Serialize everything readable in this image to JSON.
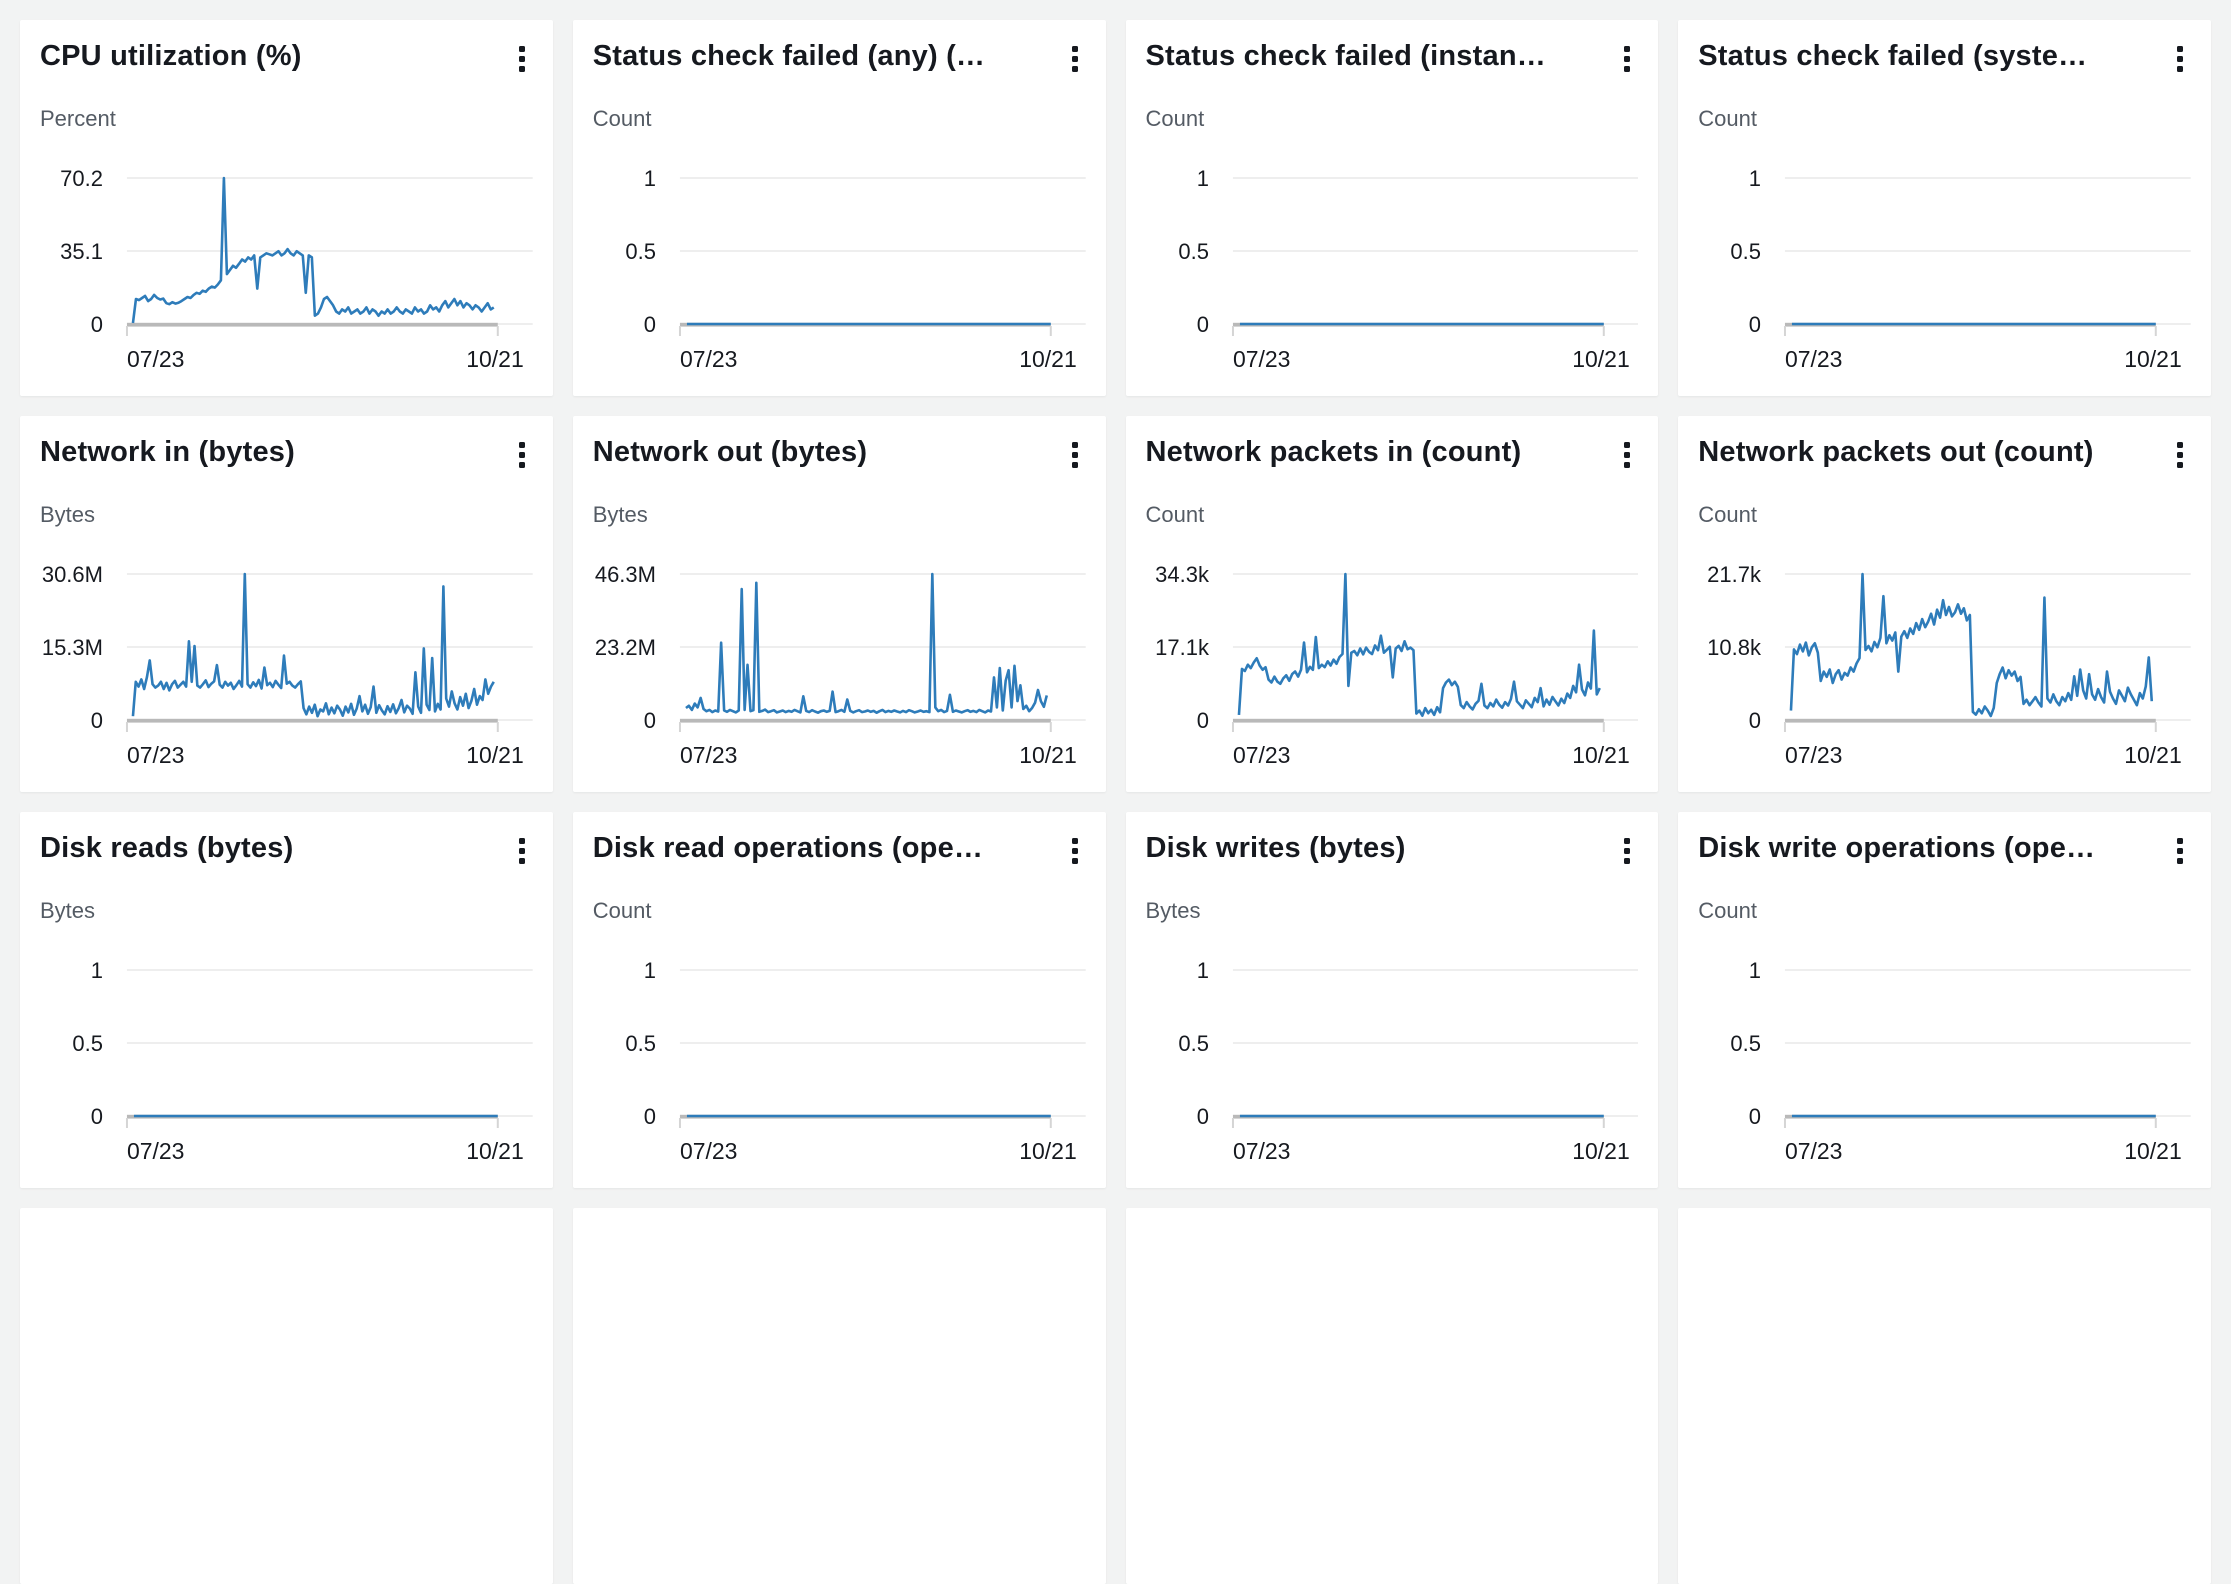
{
  "page": {
    "background": "#f2f3f3"
  },
  "colors": {
    "line": "#2e7cba",
    "grid": "#e9e9e9",
    "baseline": "#b9b9b9",
    "axis_tick_mark": "#d5d5d5",
    "title": "#16191f",
    "unit": "#545b64",
    "tick_label": "#16191f",
    "card_bg": "#ffffff"
  },
  "menu_icon": "kebab-vertical-dots",
  "partial_row": {
    "count": 4
  },
  "cards": [
    {
      "title": "CPU utilization (%)",
      "unit": "Percent",
      "y_ticks": [
        "70.2",
        "35.1",
        "0"
      ],
      "y_max": 70.2,
      "x_start": "07/23",
      "x_end": "10/21",
      "type": "line",
      "values": [
        0.5,
        12,
        11.5,
        12.5,
        13.5,
        11,
        12,
        14,
        12.5,
        11.8,
        12.2,
        10,
        9.5,
        10.5,
        9.8,
        10.2,
        11,
        12,
        13,
        12.5,
        14,
        15,
        14.5,
        16,
        15.5,
        17,
        18,
        17.5,
        19,
        21,
        70.2,
        24,
        26,
        28,
        27,
        29,
        31,
        30,
        32,
        31,
        33,
        17,
        32,
        33,
        34,
        33.5,
        33,
        34,
        35,
        33,
        34,
        36,
        34,
        33,
        35,
        34,
        33,
        15,
        33,
        32,
        4,
        5,
        8,
        12,
        13,
        11,
        9,
        6,
        5,
        7,
        6,
        8,
        5,
        6,
        7,
        5,
        6,
        8,
        5,
        7,
        6,
        4,
        6,
        5,
        7,
        5,
        6,
        8,
        6,
        5,
        7,
        6,
        5,
        8,
        6,
        7,
        5,
        6,
        9,
        7,
        8,
        6,
        9,
        11,
        8,
        10,
        12,
        9,
        11,
        8,
        10,
        9,
        7,
        9,
        8,
        6,
        8,
        10,
        7,
        8
      ]
    },
    {
      "title": "Status check failed (any) (…",
      "unit": "Count",
      "y_ticks": [
        "1",
        "0.5",
        "0"
      ],
      "y_max": 1,
      "x_start": "07/23",
      "x_end": "10/21",
      "type": "line",
      "values": [
        0,
        0
      ]
    },
    {
      "title": "Status check failed (instan…",
      "unit": "Count",
      "y_ticks": [
        "1",
        "0.5",
        "0"
      ],
      "y_max": 1,
      "x_start": "07/23",
      "x_end": "10/21",
      "type": "line",
      "values": [
        0,
        0
      ]
    },
    {
      "title": "Status check failed (syste…",
      "unit": "Count",
      "y_ticks": [
        "1",
        "0.5",
        "0"
      ],
      "y_max": 1,
      "x_start": "07/23",
      "x_end": "10/21",
      "type": "line",
      "values": [
        0,
        0
      ]
    },
    {
      "title": "Network in (bytes)",
      "unit": "Bytes",
      "y_ticks": [
        "30.6M",
        "15.3M",
        "0"
      ],
      "y_max": 30.6,
      "x_start": "07/23",
      "x_end": "10/21",
      "type": "line",
      "values": [
        0.8,
        8,
        7,
        8.5,
        6.5,
        9,
        12.5,
        7.5,
        6.8,
        7.2,
        8,
        6.5,
        7.8,
        6.2,
        7.5,
        8.2,
        6.8,
        7.4,
        8,
        7,
        16.5,
        8,
        15.5,
        7.2,
        6.8,
        7.5,
        8.3,
        6.9,
        7.6,
        8.1,
        11.5,
        7.4,
        6.8,
        8,
        7.2,
        7.8,
        6.5,
        7.3,
        8.2,
        7,
        30.6,
        7.5,
        6.8,
        7.9,
        7.1,
        8.4,
        6.6,
        11,
        7.3,
        7.8,
        6.9,
        8.2,
        7.4,
        6.7,
        13.5,
        7.6,
        8,
        7.2,
        6.8,
        7.5,
        8.1,
        2.5,
        1.2,
        2.8,
        1.5,
        3.2,
        0.8,
        2.2,
        1.8,
        3.5,
        1.2,
        2.6,
        1.4,
        3,
        2.2,
        0.9,
        2.8,
        1.6,
        3.4,
        1.1,
        2.4,
        5,
        1.8,
        3.2,
        1.3,
        2.7,
        7,
        1.5,
        3.1,
        2,
        1.2,
        2.9,
        1.7,
        3.3,
        1.4,
        2.5,
        4.2,
        1.6,
        3,
        2.4,
        1.3,
        10,
        2.8,
        1.5,
        15,
        3.2,
        2.1,
        13,
        1.8,
        3.4,
        2.2,
        28,
        4.5,
        2.8,
        6,
        3.5,
        2.2,
        4.8,
        3,
        5.5,
        2.5,
        4,
        6.5,
        3.2,
        5,
        4.2,
        8.5,
        5.5,
        7,
        8
      ]
    },
    {
      "title": "Network out (bytes)",
      "unit": "Bytes",
      "y_ticks": [
        "46.3M",
        "23.2M",
        "0"
      ],
      "y_max": 46.3,
      "x_start": "07/23",
      "x_end": "10/21",
      "type": "line",
      "values": [
        3.8,
        4.5,
        3.2,
        5.2,
        4,
        7,
        3.5,
        2.8,
        3.2,
        2.5,
        3,
        2.7,
        24.5,
        3,
        2.6,
        3.2,
        2.8,
        2.4,
        3,
        41.5,
        3.2,
        17.5,
        2.8,
        3.1,
        43.5,
        2.6,
        2.9,
        3.3,
        2.5,
        2.8,
        3.1,
        2.4,
        2.7,
        3,
        2.5,
        2.9,
        2.6,
        3.2,
        2.8,
        2.4,
        7.5,
        2.9,
        2.5,
        3.1,
        2.7,
        2.3,
        2.8,
        3,
        2.6,
        2.9,
        9,
        2.5,
        2.8,
        3.2,
        2.6,
        6.5,
        2.9,
        2.4,
        2.8,
        3.1,
        2.5,
        2.7,
        3,
        2.6,
        2.9,
        2.3,
        2.8,
        3.2,
        2.5,
        2.9,
        2.6,
        3,
        2.7,
        2.4,
        2.9,
        2.5,
        3.1,
        2.8,
        2.4,
        2.7,
        3,
        2.6,
        2.8,
        2.5,
        46.3,
        4,
        2.8,
        3.2,
        2.5,
        2.9,
        8,
        2.6,
        3,
        2.7,
        2.4,
        2.8,
        3.1,
        2.6,
        2.9,
        2.5,
        3.2,
        2.8,
        2.4,
        3,
        2.7,
        13.5,
        4,
        16.5,
        3,
        12.5,
        15.8,
        4,
        17.2,
        6,
        11,
        3.5,
        4.5,
        2.8,
        3.8,
        5.5,
        9.5,
        6,
        4.2,
        7.8
      ]
    },
    {
      "title": "Network packets in (count)",
      "unit": "Count",
      "y_ticks": [
        "34.3k",
        "17.1k",
        "0"
      ],
      "y_max": 34.3,
      "x_start": "07/23",
      "x_end": "10/21",
      "type": "line",
      "values": [
        1.2,
        12,
        11.5,
        13,
        12.2,
        13.5,
        14.5,
        12.8,
        11.8,
        12.4,
        9.5,
        8.8,
        10.2,
        9,
        8.5,
        9.8,
        10.5,
        9.2,
        10.8,
        11.4,
        10.2,
        11.8,
        18.2,
        11.2,
        12.5,
        11.8,
        19.5,
        12.2,
        13,
        12.4,
        13.8,
        12.8,
        14.2,
        13.2,
        14.8,
        15.5,
        34.3,
        8,
        15.8,
        16.2,
        15.2,
        16.8,
        15.4,
        17,
        16,
        15.5,
        17.5,
        16.4,
        19.8,
        15.8,
        16.5,
        17.2,
        10,
        16.8,
        17.4,
        16.2,
        18.5,
        16.6,
        17,
        16.4,
        1.5,
        2.2,
        1,
        2.8,
        1.6,
        2.4,
        1.2,
        3,
        1.8,
        7.5,
        8.8,
        9.5,
        8.2,
        9,
        7.8,
        3.5,
        2.8,
        4.2,
        3.2,
        2.5,
        3.8,
        4.5,
        8.5,
        3.4,
        2.8,
        4,
        3.2,
        4.8,
        3.6,
        2.9,
        4.2,
        3.4,
        5,
        9,
        4.4,
        3.6,
        2.8,
        4.6,
        3.8,
        3,
        5.2,
        4.2,
        7.5,
        3.2,
        4.8,
        3.6,
        5.4,
        4.4,
        3.4,
        5,
        4,
        6.2,
        5.2,
        8,
        6.5,
        13,
        7.2,
        5.8,
        8.8,
        7.4,
        21,
        6,
        7.5
      ]
    },
    {
      "title": "Network packets out (count)",
      "unit": "Count",
      "y_ticks": [
        "21.7k",
        "10.8k",
        "0"
      ],
      "y_max": 21.7,
      "x_start": "07/23",
      "x_end": "10/21",
      "type": "line",
      "values": [
        1.4,
        10.5,
        9.8,
        11.2,
        10.2,
        11.5,
        9.6,
        10.8,
        11.4,
        10,
        5.8,
        7.2,
        6.4,
        7.5,
        5.5,
        6.8,
        7.4,
        6,
        7,
        6.6,
        7.8,
        7.2,
        8.4,
        9.2,
        21.7,
        10.4,
        11,
        10.2,
        11.6,
        10.8,
        12.2,
        18.4,
        11.4,
        12.6,
        11.8,
        13,
        7.2,
        12.4,
        13.2,
        12.2,
        13.6,
        12.8,
        14.4,
        13.4,
        15,
        13.8,
        14.6,
        15.8,
        14.2,
        16.4,
        15.2,
        17.8,
        15.6,
        16.8,
        15.4,
        16,
        17.2,
        15.8,
        16.6,
        14.8,
        15.6,
        1.2,
        0.8,
        1.6,
        1,
        2,
        1.4,
        0.6,
        1.8,
        5.5,
        6.8,
        7.8,
        6.2,
        7.4,
        6.6,
        7.2,
        5.8,
        6.4,
        2.4,
        3,
        2.2,
        2.8,
        3.4,
        2.6,
        2,
        18.2,
        3.2,
        2.6,
        3.8,
        2.8,
        2.2,
        3.4,
        2.8,
        4,
        3,
        6.5,
        3.6,
        7.5,
        4.4,
        3.2,
        6.8,
        3.8,
        3,
        4.6,
        3.4,
        2.6,
        7.2,
        4.2,
        3.2,
        2.4,
        4.4,
        3.6,
        2.8,
        4.8,
        3.8,
        3,
        2.2,
        4,
        3.2,
        5,
        9.3,
        2.8
      ]
    },
    {
      "title": "Disk reads (bytes)",
      "unit": "Bytes",
      "y_ticks": [
        "1",
        "0.5",
        "0"
      ],
      "y_max": 1,
      "x_start": "07/23",
      "x_end": "10/21",
      "type": "line",
      "values": [
        0,
        0
      ]
    },
    {
      "title": "Disk read operations (ope…",
      "unit": "Count",
      "y_ticks": [
        "1",
        "0.5",
        "0"
      ],
      "y_max": 1,
      "x_start": "07/23",
      "x_end": "10/21",
      "type": "line",
      "values": [
        0,
        0
      ]
    },
    {
      "title": "Disk writes (bytes)",
      "unit": "Bytes",
      "y_ticks": [
        "1",
        "0.5",
        "0"
      ],
      "y_max": 1,
      "x_start": "07/23",
      "x_end": "10/21",
      "type": "line",
      "values": [
        0,
        0
      ]
    },
    {
      "title": "Disk write operations (ope…",
      "unit": "Count",
      "y_ticks": [
        "1",
        "0.5",
        "0"
      ],
      "y_max": 1,
      "x_start": "07/23",
      "x_end": "10/21",
      "type": "line",
      "values": [
        0,
        0
      ]
    }
  ]
}
